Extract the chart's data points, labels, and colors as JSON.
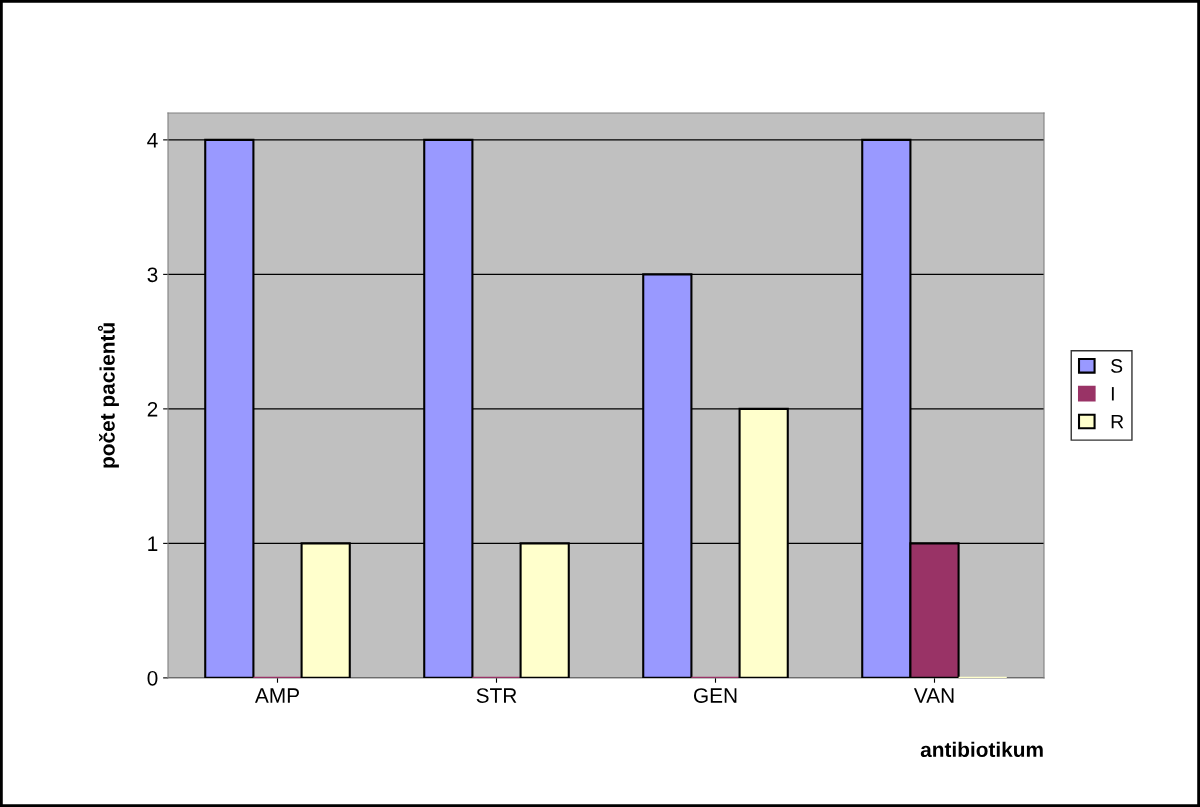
{
  "chart_data": {
    "type": "bar",
    "xlabel": "antibiotikum",
    "ylabel": "počet pacientů",
    "categories": [
      "AMP",
      "STR",
      "GEN",
      "VAN"
    ],
    "series": [
      {
        "name": "S",
        "color": "#9999ff",
        "values": [
          4,
          4,
          3,
          4
        ]
      },
      {
        "name": "I",
        "color": "#993366",
        "values": [
          0,
          0,
          0,
          1
        ]
      },
      {
        "name": "R",
        "color": "#ffffcc",
        "values": [
          1,
          1,
          2,
          0
        ]
      }
    ],
    "ylim": [
      0,
      4.2
    ],
    "yticks": [
      0,
      1,
      2,
      3,
      4
    ],
    "grid": "y",
    "legend": "right"
  }
}
